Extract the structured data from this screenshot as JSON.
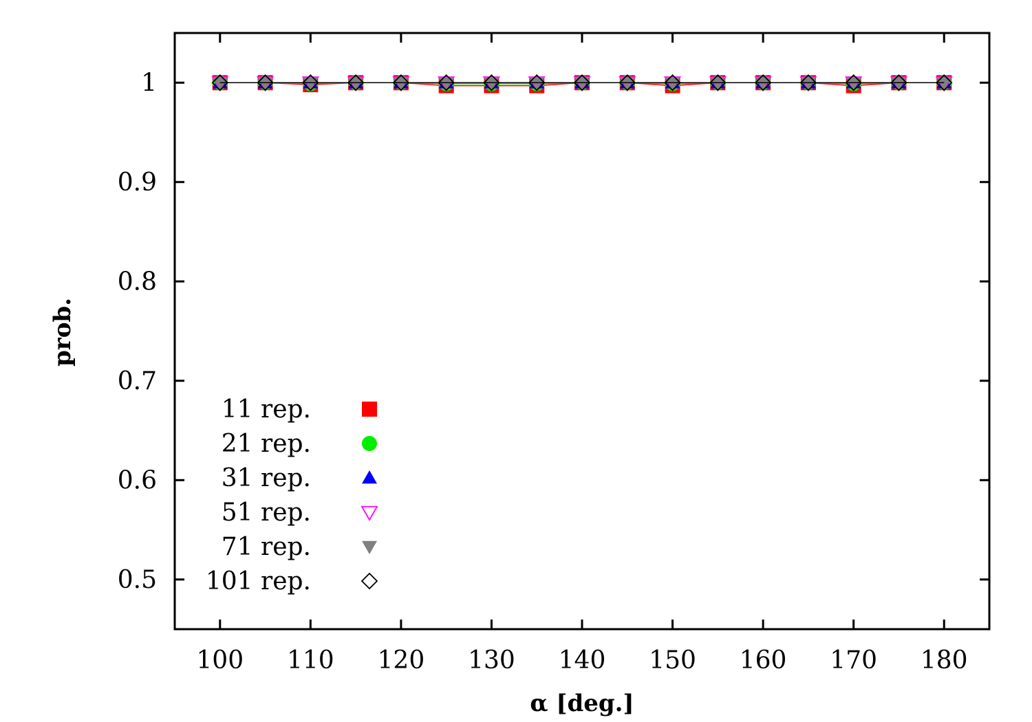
{
  "chart_data": {
    "type": "line",
    "title": "",
    "xlabel": "α [deg.]",
    "ylabel": "prob.",
    "xlim": [
      95,
      185
    ],
    "ylim": [
      0.45,
      1.05
    ],
    "x_ticks": [
      100,
      110,
      120,
      130,
      140,
      150,
      160,
      170,
      180
    ],
    "y_ticks": [
      0.5,
      0.6,
      0.7,
      0.8,
      0.9,
      1.0
    ],
    "y_tick_labels": [
      "0.5",
      "0.6",
      "0.7",
      "0.8",
      "0.9",
      "1"
    ],
    "grid": false,
    "legend_position": "bottom-left",
    "x": [
      100,
      105,
      110,
      115,
      120,
      125,
      130,
      135,
      140,
      145,
      150,
      155,
      160,
      165,
      170,
      175,
      180
    ],
    "series": [
      {
        "name": "11 rep.",
        "marker": "square",
        "color": "#ff0000",
        "values": [
          1.0,
          1.0,
          0.998,
          1.0,
          1.0,
          0.997,
          0.997,
          0.997,
          1.0,
          1.0,
          0.997,
          1.0,
          1.0,
          1.0,
          0.997,
          1.0,
          1.0
        ]
      },
      {
        "name": "21 rep.",
        "marker": "circle",
        "color": "#00ee00",
        "values": [
          1.0,
          1.0,
          0.999,
          1.0,
          1.0,
          0.999,
          0.999,
          0.999,
          1.0,
          1.0,
          0.999,
          1.0,
          1.0,
          1.0,
          0.999,
          1.0,
          1.0
        ]
      },
      {
        "name": "31 rep.",
        "marker": "triangle-up",
        "color": "#0000ff",
        "values": [
          1.0,
          1.0,
          1.0,
          1.0,
          1.0,
          1.0,
          1.0,
          1.0,
          1.0,
          1.0,
          1.0,
          1.0,
          1.0,
          1.0,
          1.0,
          1.0,
          1.0
        ]
      },
      {
        "name": "51 rep.",
        "marker": "triangle-down-open",
        "color": "#ff00ff",
        "values": [
          1.0,
          1.0,
          1.0,
          1.0,
          1.0,
          1.0,
          1.0,
          1.0,
          1.0,
          1.0,
          1.0,
          1.0,
          1.0,
          1.0,
          1.0,
          1.0,
          1.0
        ]
      },
      {
        "name": "71 rep.",
        "marker": "triangle-down",
        "color": "#808080",
        "values": [
          1.0,
          1.0,
          1.0,
          1.0,
          1.0,
          1.0,
          1.0,
          1.0,
          1.0,
          1.0,
          1.0,
          1.0,
          1.0,
          1.0,
          1.0,
          1.0,
          1.0
        ]
      },
      {
        "name": "101 rep.",
        "marker": "diamond-open",
        "color": "#000000",
        "values": [
          1.0,
          1.0,
          1.0,
          1.0,
          1.0,
          1.0,
          1.0,
          1.0,
          1.0,
          1.0,
          1.0,
          1.0,
          1.0,
          1.0,
          1.0,
          1.0,
          1.0
        ]
      }
    ]
  }
}
